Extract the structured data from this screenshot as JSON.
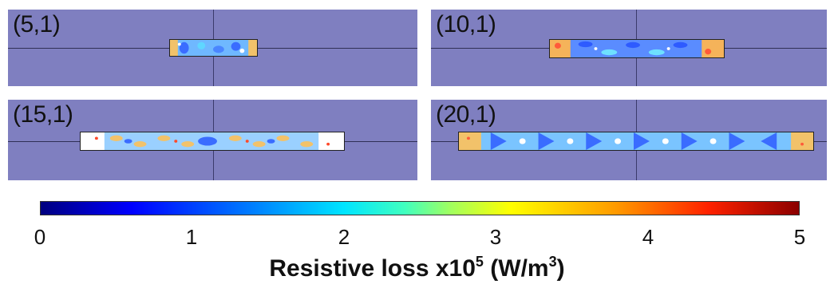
{
  "panels": [
    {
      "label": "(5,1)"
    },
    {
      "label": "(10,1)"
    },
    {
      "label": "(15,1)"
    },
    {
      "label": "(20,1)"
    }
  ],
  "colorbar": {
    "ticks": [
      "0",
      "1",
      "2",
      "3",
      "4",
      "5"
    ],
    "title_main": "Resistive loss x10",
    "title_exp": "5",
    "title_unit_open": " (W/m",
    "title_unit_exp": "3",
    "title_unit_close": ")"
  },
  "colors": {
    "background": "#7f7fc0",
    "low": "#00007f",
    "high": "#8b0000"
  }
}
